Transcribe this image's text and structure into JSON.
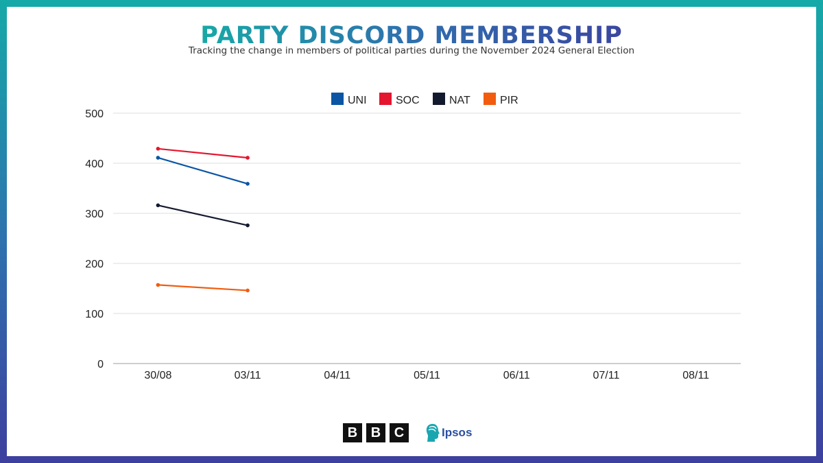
{
  "header": {
    "title": "PARTY DISCORD MEMBERSHIP",
    "subtitle": "Tracking the change in members of political parties during the November 2024 General Election"
  },
  "logos": {
    "bbc_letters": [
      "B",
      "B",
      "C"
    ],
    "ipsos_label": "Ipsos"
  },
  "chart_data": {
    "type": "line",
    "categories": [
      "30/08",
      "03/11",
      "04/11",
      "05/11",
      "06/11",
      "07/11",
      "08/11"
    ],
    "ylim": [
      0,
      500
    ],
    "yticks": [
      0,
      100,
      200,
      300,
      400,
      500
    ],
    "grid": true,
    "legend_position": "top",
    "series": [
      {
        "name": "UNI",
        "color": "#0b55a3",
        "values": [
          411,
          359,
          null,
          null,
          null,
          null,
          null
        ]
      },
      {
        "name": "SOC",
        "color": "#e4152e",
        "values": [
          429,
          411,
          null,
          null,
          null,
          null,
          null
        ]
      },
      {
        "name": "NAT",
        "color": "#141a2e",
        "values": [
          316,
          276,
          null,
          null,
          null,
          null,
          null
        ]
      },
      {
        "name": "PIR",
        "color": "#f25c0f",
        "values": [
          157,
          146,
          null,
          null,
          null,
          null,
          null
        ]
      }
    ]
  }
}
